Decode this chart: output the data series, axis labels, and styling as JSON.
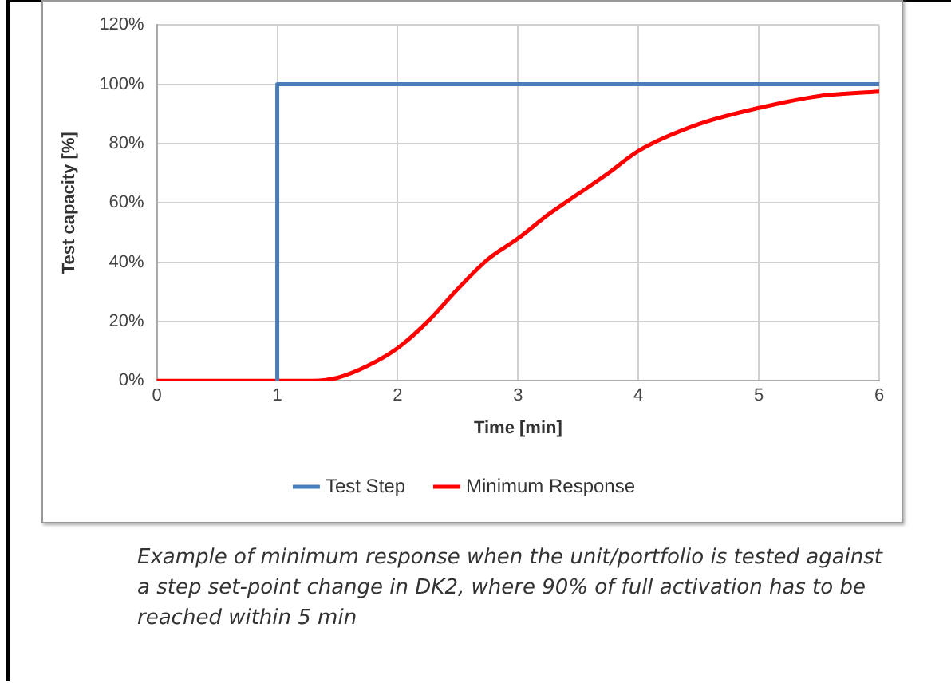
{
  "chart_data": {
    "type": "line",
    "xlabel": "Time [min]",
    "ylabel": "Test capacity [%]",
    "xlim": [
      0,
      6
    ],
    "xticks": [
      0,
      1,
      2,
      3,
      4,
      5,
      6
    ],
    "ylim": [
      0,
      120
    ],
    "yticks": [
      {
        "value": 0,
        "label": "0%"
      },
      {
        "value": 20,
        "label": "20%"
      },
      {
        "value": 40,
        "label": "40%"
      },
      {
        "value": 60,
        "label": "60%"
      },
      {
        "value": 80,
        "label": "80%"
      },
      {
        "value": 100,
        "label": "100%"
      },
      {
        "value": 120,
        "label": "120%"
      }
    ],
    "series": [
      {
        "name": "Test Step",
        "color": "#4a7ebb",
        "x": [
          1,
          1,
          6
        ],
        "values": [
          0,
          100,
          100
        ]
      },
      {
        "name": "Minimum Response",
        "color": "#ff0000",
        "x": [
          0,
          1,
          1.3,
          1.5,
          1.75,
          2,
          2.25,
          2.5,
          2.75,
          3,
          3.25,
          3.5,
          3.75,
          4,
          4.5,
          5,
          5.5,
          6
        ],
        "values": [
          0,
          0,
          0,
          1,
          5,
          11,
          20,
          31,
          41,
          48,
          56,
          63,
          70,
          77.5,
          86.5,
          92,
          96,
          97.5
        ]
      }
    ],
    "grid": true,
    "legend": "bottom",
    "marker": "none",
    "line_style": "solid",
    "annotations": [
      "Example of minimum response when the unit/portfolio is tested against a step set-point change in DK2, where 90% of full activation has to be reached within 5 min"
    ]
  }
}
